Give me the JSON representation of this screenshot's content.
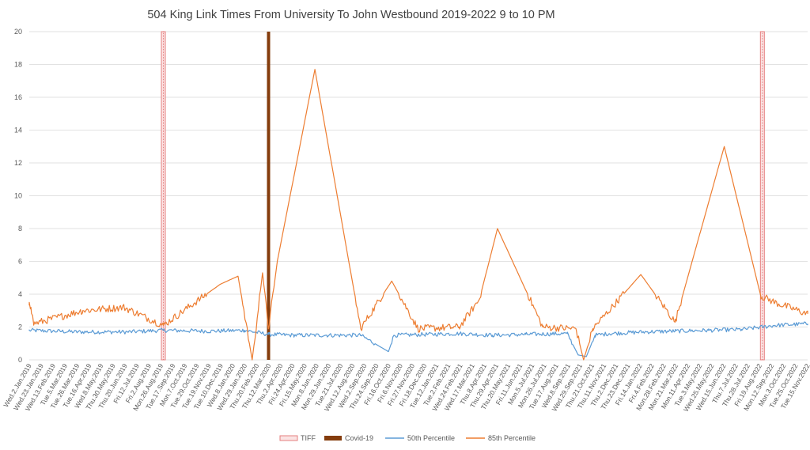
{
  "chart_data": {
    "type": "line",
    "title": "504 King Link Times From University To John Westbound 2019-2022 9 to 10 PM",
    "xlabel": "",
    "ylabel": "",
    "ylim": [
      0,
      20
    ],
    "yticks": [
      0,
      2,
      4,
      6,
      8,
      10,
      12,
      14,
      16,
      18,
      20
    ],
    "grid": true,
    "legend_position": "bottom",
    "x_range": [
      "2019-01-02",
      "2022-11-30"
    ],
    "x_tick_labels": [
      "Wed.2.Jan.2019",
      "Wed.23.Jan.2019",
      "Wed.13.Feb.2019",
      "Tue.5.Mar.2019",
      "Tue.26.Mar.2019",
      "Tue.16.Apr.2019",
      "Wed.8.May.2019",
      "Thu.30.May.2019",
      "Thu.20.Jun.2019",
      "Fri.12.Jul.2019",
      "Fri.2.Aug.2019",
      "Mon.26.Aug.2019",
      "Tue.17.Sep.2019",
      "Mon.7.Oct.2019",
      "Tue.29.Oct.2019",
      "Tue.19.Nov.2019",
      "Tue.10.Dec.2019",
      "Wed.8.Jan.2020",
      "Wed.29.Jan.2020",
      "Thu.20.Feb.2020",
      "Thu.12.Mar.2020",
      "Thu.2.Apr.2020",
      "Fri.24.Apr.2020",
      "Fri.15.May.2020",
      "Mon.8.Jun.2020",
      "Mon.29.Jun.2020",
      "Tue.21.Jul.2020",
      "Wed.12.Aug.2020",
      "Wed.2.Sep.2020",
      "Thu.24.Sep.2020",
      "Fri.16.Oct.2020",
      "Fri.6.Nov.2020",
      "Fri.27.Nov.2020",
      "Fri.18.Dec.2020",
      "Tue.12.Jan.2021",
      "Tue.2.Feb.2021",
      "Wed.24.Feb.2021",
      "Wed.17.Mar.2021",
      "Thu.8.Apr.2021",
      "Thu.29.Apr.2021",
      "Thu.20.May.2021",
      "Fri.11.Jun.2021",
      "Mon.5.Jul.2021",
      "Mon.26.Jul.2021",
      "Tue.17.Aug.2021",
      "Wed.8.Sep.2021",
      "Wed.29.Sep.2021",
      "Thu.21.Oct.2021",
      "Thu.11.Nov.2021",
      "Thu.2.Dec.2021",
      "Thu.23.Dec.2021",
      "Fri.14.Jan.2022",
      "Fri.4.Feb.2022",
      "Mon.28.Feb.2022",
      "Mon.21.Mar.2022",
      "Mon.11.Apr.2022",
      "Tue.3.May.2022",
      "Wed.25.May.2022",
      "Wed.15.Jun.2022",
      "Thu.7.Jul.2022",
      "Thu.28.Jul.2022",
      "Fri.19.Aug.2022",
      "Mon.12.Sep.2022",
      "Mon.3.Oct.2022",
      "Tue.25.Oct.2022",
      "Tue.15.Nov.2022"
    ],
    "legend": [
      "TIFF",
      "Covid-19",
      "50th Percentile",
      "85th Percentile"
    ],
    "markers": [
      {
        "name": "TIFF",
        "color": "#e57f7f",
        "dates": [
          "2019-09-05",
          "2022-09-08"
        ]
      },
      {
        "name": "Covid-19",
        "color": "#843c0c",
        "dates": [
          "2020-03-16"
        ]
      }
    ],
    "series": [
      {
        "name": "50th Percentile",
        "color": "#5b9bd5",
        "x": [
          "2019-01-02",
          "2019-04-01",
          "2019-07-01",
          "2019-09-05",
          "2019-12-01",
          "2020-02-01",
          "2020-03-16",
          "2020-05-01",
          "2020-07-01",
          "2020-09-01",
          "2020-10-22",
          "2020-11-01",
          "2021-01-01",
          "2021-03-01",
          "2021-05-01",
          "2021-07-01",
          "2021-09-15",
          "2021-10-05",
          "2021-10-20",
          "2021-11-05",
          "2021-12-01",
          "2022-02-01",
          "2022-04-01",
          "2022-06-01",
          "2022-08-01",
          "2022-09-08",
          "2022-10-01",
          "2022-11-30"
        ],
        "values": [
          1.8,
          1.7,
          1.7,
          1.8,
          1.75,
          1.8,
          1.55,
          1.5,
          1.5,
          1.5,
          0.5,
          1.5,
          1.55,
          1.6,
          1.5,
          1.55,
          1.6,
          0.3,
          0.2,
          1.5,
          1.6,
          1.7,
          1.75,
          1.8,
          1.85,
          2.0,
          2.1,
          2.2
        ]
      },
      {
        "name": "85th Percentile",
        "color": "#ed7d31",
        "x": [
          "2019-01-02",
          "2019-01-05",
          "2019-01-10",
          "2019-04-10",
          "2019-06-25",
          "2019-09-05",
          "2019-12-18",
          "2020-01-20",
          "2020-02-15",
          "2020-03-05",
          "2020-03-16",
          "2020-04-01",
          "2020-06-09",
          "2020-09-01",
          "2020-10-28",
          "2020-12-15",
          "2021-03-01",
          "2021-04-07",
          "2021-05-10",
          "2021-08-01",
          "2021-10-01",
          "2021-10-15",
          "2021-11-01",
          "2022-01-28",
          "2022-04-01",
          "2022-06-30",
          "2022-09-05",
          "2022-10-01",
          "2022-11-30"
        ],
        "values": [
          3.5,
          3.2,
          2.2,
          3.0,
          3.2,
          2.1,
          4.6,
          5.1,
          0.0,
          5.3,
          1.9,
          6.0,
          17.7,
          1.9,
          4.8,
          1.9,
          2.0,
          3.7,
          8.0,
          2.0,
          1.9,
          0.0,
          1.9,
          5.2,
          2.3,
          13.0,
          3.9,
          3.5,
          2.8
        ]
      }
    ]
  }
}
